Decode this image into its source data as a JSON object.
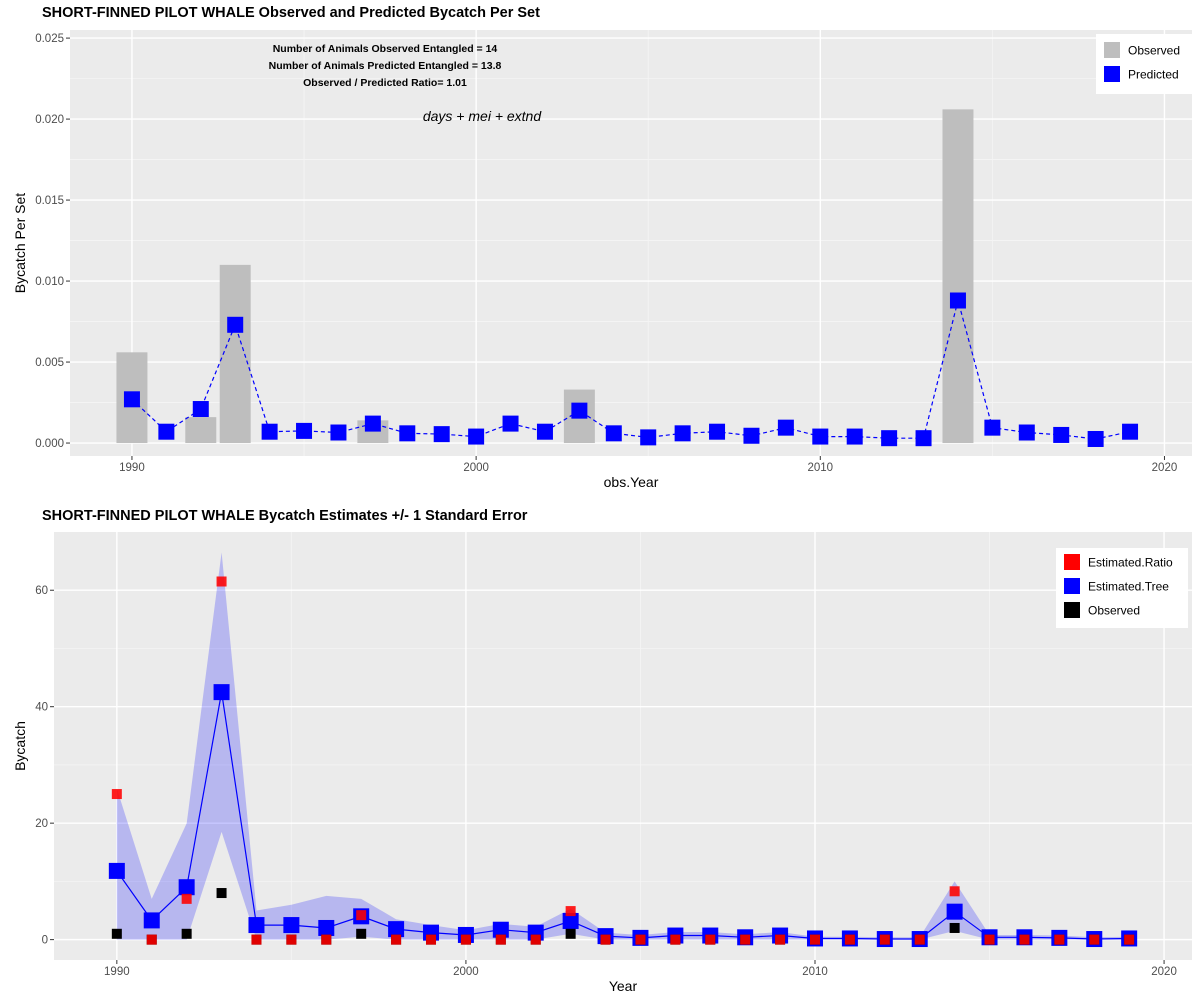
{
  "chart_data": [
    {
      "type": "bar",
      "title": "SHORT-FINNED PILOT WHALE Observed and Predicted Bycatch Per Set",
      "xlabel": "obs.Year",
      "ylabel": "Bycatch Per Set",
      "xlim": [
        1988.2,
        2020.8
      ],
      "ylim": [
        -0.0008,
        0.0255
      ],
      "xticks": [
        1990,
        2000,
        2010,
        2020
      ],
      "yticks": [
        0.0,
        0.005,
        0.01,
        0.015,
        0.02,
        0.025
      ],
      "ytick_labels": [
        "0.000",
        "0.005",
        "0.010",
        "0.015",
        "0.020",
        "0.025"
      ],
      "grid": true,
      "legend": {
        "position": "top-right",
        "entries": [
          {
            "label": "Observed",
            "color": "#bebebe"
          },
          {
            "label": "Predicted",
            "color": "#0000ff"
          }
        ]
      },
      "annotations": {
        "observed": "Number of Animals Observed Entangled = 14",
        "predicted": "Number of Animals Predicted Entangled = 13.8",
        "ratio": "Observed / Predicted Ratio= 1.01",
        "formula": "days + mei + extnd"
      },
      "series": [
        {
          "name": "Observed",
          "kind": "bar",
          "x": [
            1990,
            1992,
            1993,
            1997,
            2003,
            2014
          ],
          "values": [
            0.0056,
            0.0016,
            0.011,
            0.0014,
            0.0033,
            0.0206
          ]
        },
        {
          "name": "Predicted",
          "kind": "line-points",
          "x": [
            1990,
            1991,
            1992,
            1993,
            1994,
            1995,
            1996,
            1997,
            1998,
            1999,
            2000,
            2001,
            2002,
            2003,
            2004,
            2005,
            2006,
            2007,
            2008,
            2009,
            2010,
            2011,
            2012,
            2013,
            2014,
            2015,
            2016,
            2017,
            2018,
            2019
          ],
          "values": [
            0.0027,
            0.0007,
            0.0021,
            0.0073,
            0.0007,
            0.00075,
            0.00065,
            0.0012,
            0.0006,
            0.00055,
            0.0004,
            0.0012,
            0.0007,
            0.002,
            0.0006,
            0.00035,
            0.0006,
            0.0007,
            0.00045,
            0.00095,
            0.0004,
            0.0004,
            0.0003,
            0.0003,
            0.0088,
            0.00095,
            0.00065,
            0.0005,
            0.00025,
            0.0007
          ]
        }
      ]
    },
    {
      "type": "line",
      "title": "SHORT-FINNED PILOT WHALE Bycatch Estimates +/- 1 Standard Error",
      "xlabel": "Year",
      "ylabel": "Bycatch",
      "xlim": [
        1988.2,
        2020.8
      ],
      "ylim": [
        -3.5,
        70
      ],
      "xticks": [
        1990,
        2000,
        2010,
        2020
      ],
      "yticks": [
        0,
        20,
        40,
        60
      ],
      "ytick_labels": [
        "0",
        "20",
        "40",
        "60"
      ],
      "grid": true,
      "legend": {
        "position": "top-right",
        "entries": [
          {
            "label": "Estimated.Ratio",
            "color": "#ff0000"
          },
          {
            "label": "Estimated.Tree",
            "color": "#0000ff"
          },
          {
            "label": "Observed",
            "color": "#000000"
          }
        ]
      },
      "x": [
        1990,
        1991,
        1992,
        1993,
        1994,
        1995,
        1996,
        1997,
        1998,
        1999,
        2000,
        2001,
        2002,
        2003,
        2004,
        2005,
        2006,
        2007,
        2008,
        2009,
        2010,
        2011,
        2012,
        2013,
        2014,
        2015,
        2016,
        2017,
        2018,
        2019
      ],
      "series": [
        {
          "name": "Estimated.Tree",
          "values": [
            11.8,
            3.3,
            9.0,
            42.5,
            2.5,
            2.5,
            2.0,
            4.0,
            1.8,
            1.2,
            0.8,
            1.7,
            1.2,
            3.2,
            0.6,
            0.3,
            0.7,
            0.7,
            0.4,
            0.7,
            0.2,
            0.2,
            0.1,
            0.1,
            4.8,
            0.4,
            0.4,
            0.3,
            0.1,
            0.2
          ],
          "lower": [
            0.0,
            0.0,
            0.0,
            18.5,
            0.0,
            0.0,
            0.0,
            0.5,
            0.0,
            0.0,
            0.0,
            0.0,
            0.0,
            1.0,
            0.0,
            0.0,
            0.0,
            0.0,
            0.0,
            0.0,
            0.0,
            0.0,
            0.0,
            0.0,
            1.5,
            0.0,
            0.0,
            0.0,
            0.0,
            0.0
          ],
          "upper": [
            26.0,
            7.0,
            20.0,
            66.5,
            5.0,
            6.0,
            7.5,
            7.0,
            3.5,
            2.5,
            1.6,
            2.7,
            2.2,
            5.3,
            1.2,
            0.8,
            1.3,
            1.3,
            0.9,
            1.3,
            0.5,
            0.5,
            0.4,
            0.4,
            10.0,
            0.8,
            0.8,
            0.7,
            0.4,
            0.5
          ]
        },
        {
          "name": "Estimated.Ratio",
          "values": [
            25.0,
            0.0,
            7.0,
            61.5,
            0.0,
            0.0,
            0.0,
            4.2,
            0.0,
            0.0,
            0.0,
            0.0,
            0.0,
            4.9,
            0.0,
            0.0,
            0.0,
            0.0,
            0.0,
            0.0,
            0.0,
            0.0,
            0.0,
            0.0,
            8.3,
            0.0,
            0.0,
            0.0,
            0.0,
            0.0
          ]
        },
        {
          "name": "Observed",
          "values": [
            1,
            0,
            1,
            8,
            0,
            0,
            0,
            1,
            0,
            0,
            0,
            0,
            0,
            1,
            0,
            0,
            0,
            0,
            0,
            0,
            0,
            0,
            0,
            0,
            2,
            0,
            0,
            0,
            0,
            0
          ]
        }
      ]
    }
  ]
}
